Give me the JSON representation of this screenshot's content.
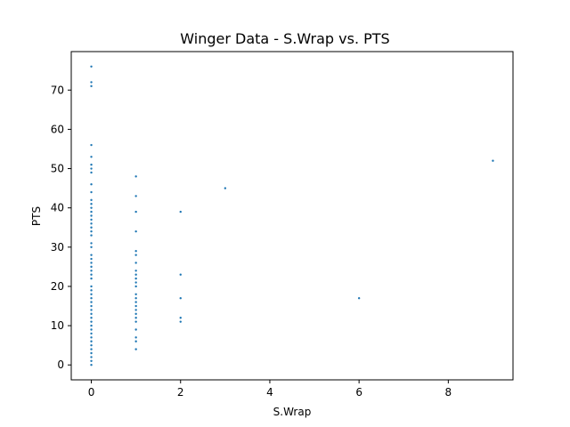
{
  "chart_data": {
    "type": "scatter",
    "title": "Winger Data - S.Wrap vs. PTS",
    "xlabel": "S.Wrap",
    "ylabel": "PTS",
    "xlim": [
      -0.45,
      9.45
    ],
    "ylim": [
      -3.8,
      79.8
    ],
    "xticks": [
      0,
      2,
      4,
      6,
      8
    ],
    "yticks": [
      0,
      10,
      20,
      30,
      40,
      50,
      60,
      70
    ],
    "grid": false,
    "color": "#1f77b4",
    "points": [
      [
        0,
        0
      ],
      [
        0,
        1
      ],
      [
        0,
        2
      ],
      [
        0,
        3
      ],
      [
        0,
        4
      ],
      [
        0,
        5
      ],
      [
        0,
        6
      ],
      [
        0,
        7
      ],
      [
        0,
        8
      ],
      [
        0,
        9
      ],
      [
        0,
        10
      ],
      [
        0,
        11
      ],
      [
        0,
        12
      ],
      [
        0,
        13
      ],
      [
        0,
        14
      ],
      [
        0,
        15
      ],
      [
        0,
        16
      ],
      [
        0,
        17
      ],
      [
        0,
        18
      ],
      [
        0,
        19
      ],
      [
        0,
        20
      ],
      [
        0,
        22
      ],
      [
        0,
        23
      ],
      [
        0,
        24
      ],
      [
        0,
        25
      ],
      [
        0,
        26
      ],
      [
        0,
        27
      ],
      [
        0,
        28
      ],
      [
        0,
        30
      ],
      [
        0,
        31
      ],
      [
        0,
        33
      ],
      [
        0,
        34
      ],
      [
        0,
        35
      ],
      [
        0,
        36
      ],
      [
        0,
        37
      ],
      [
        0,
        38
      ],
      [
        0,
        39
      ],
      [
        0,
        40
      ],
      [
        0,
        41
      ],
      [
        0,
        42
      ],
      [
        0,
        44
      ],
      [
        0,
        46
      ],
      [
        0,
        49
      ],
      [
        0,
        50
      ],
      [
        0,
        51
      ],
      [
        0,
        53
      ],
      [
        0,
        56
      ],
      [
        0,
        71
      ],
      [
        0,
        72
      ],
      [
        0,
        76
      ],
      [
        1,
        4
      ],
      [
        1,
        6
      ],
      [
        1,
        7
      ],
      [
        1,
        9
      ],
      [
        1,
        11
      ],
      [
        1,
        12
      ],
      [
        1,
        13
      ],
      [
        1,
        14
      ],
      [
        1,
        15
      ],
      [
        1,
        16
      ],
      [
        1,
        17
      ],
      [
        1,
        18
      ],
      [
        1,
        20
      ],
      [
        1,
        21
      ],
      [
        1,
        22
      ],
      [
        1,
        23
      ],
      [
        1,
        24
      ],
      [
        1,
        26
      ],
      [
        1,
        28
      ],
      [
        1,
        29
      ],
      [
        1,
        34
      ],
      [
        1,
        39
      ],
      [
        1,
        43
      ],
      [
        1,
        48
      ],
      [
        2,
        11
      ],
      [
        2,
        12
      ],
      [
        2,
        17
      ],
      [
        2,
        23
      ],
      [
        2,
        39
      ],
      [
        3,
        45
      ],
      [
        6,
        17
      ],
      [
        9,
        52
      ]
    ]
  }
}
